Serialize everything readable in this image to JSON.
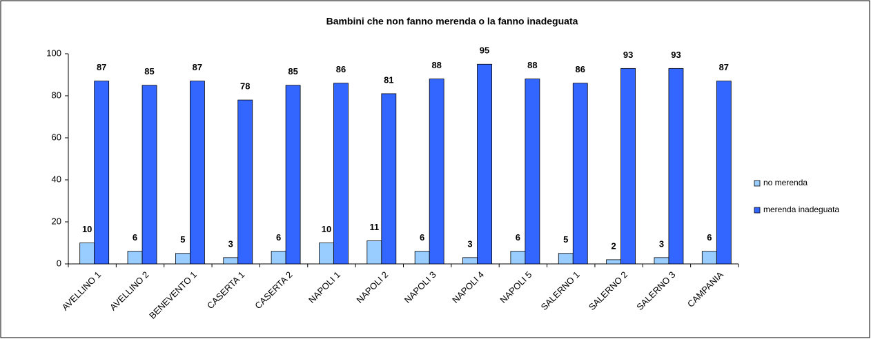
{
  "chart_data": {
    "type": "bar",
    "title": "Bambini che non fanno merenda o la fanno inadeguata",
    "categories": [
      "AVELLINO 1",
      "AVELLINO 2",
      "BENEVENTO 1",
      "CASERTA 1",
      "CASERTA 2",
      "NAPOLI 1",
      "NAPOLI 2",
      "NAPOLI 3",
      "NAPOLI 4",
      "NAPOLI 5",
      "SALERNO 1",
      "SALERNO 2",
      "SALERNO 3",
      "CAMPANIA"
    ],
    "series": [
      {
        "name": "no merenda",
        "color": "#99ccff",
        "values": [
          10,
          6,
          5,
          3,
          6,
          10,
          11,
          6,
          3,
          6,
          5,
          2,
          3,
          6
        ]
      },
      {
        "name": "merenda inadeguata",
        "color": "#3366ff",
        "values": [
          87,
          85,
          87,
          78,
          85,
          86,
          81,
          88,
          95,
          88,
          86,
          93,
          93,
          87
        ]
      }
    ],
    "ylim": [
      0,
      100
    ],
    "yticks": [
      0,
      20,
      40,
      60,
      80,
      100
    ],
    "grid": false,
    "legend": "right"
  }
}
